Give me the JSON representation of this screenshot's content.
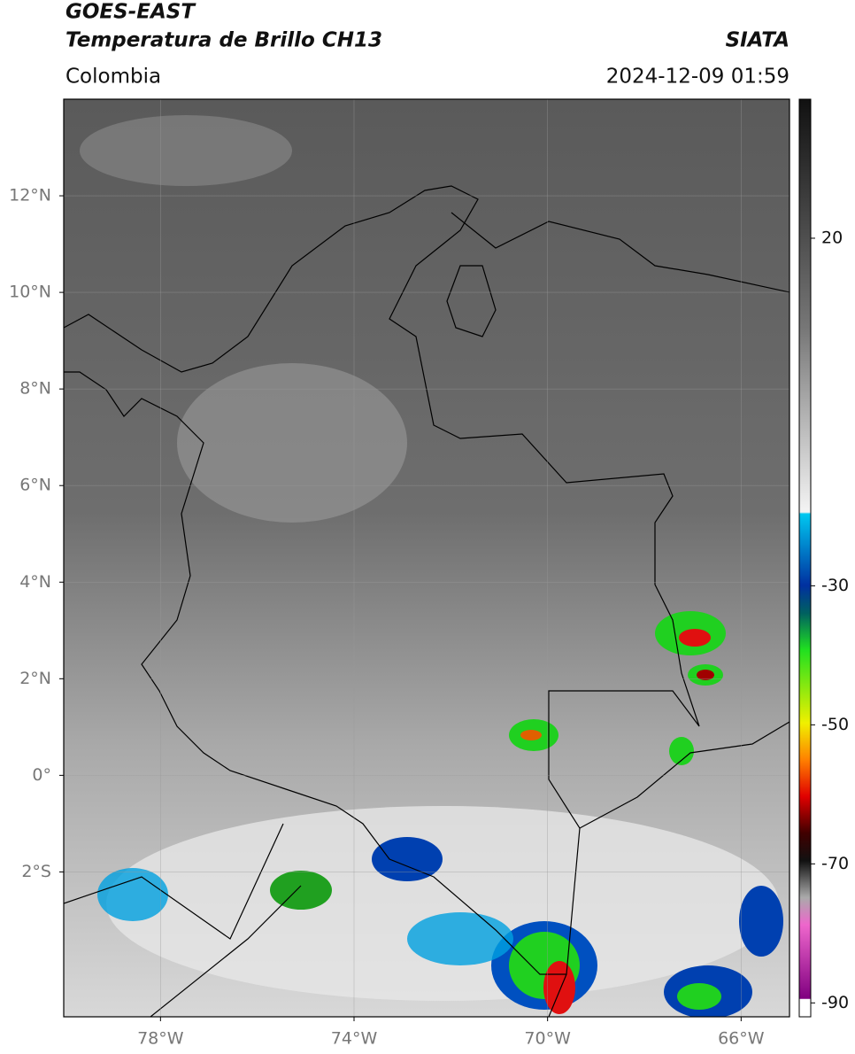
{
  "header": {
    "title": "GOES-EAST",
    "subtitle": "Temperatura de Brillo CH13",
    "region": "Colombia",
    "source": "SIATA",
    "timestamp": "2024-12-09 01:59"
  },
  "map": {
    "xlim": [
      -80,
      -65
    ],
    "ylim": [
      -5,
      14
    ],
    "xticks": [
      {
        "value": -78,
        "label": "78°W"
      },
      {
        "value": -74,
        "label": "74°W"
      },
      {
        "value": -70,
        "label": "70°W"
      },
      {
        "value": -66,
        "label": "66°W"
      }
    ],
    "yticks": [
      {
        "value": 12,
        "label": "12°N"
      },
      {
        "value": 10,
        "label": "10°N"
      },
      {
        "value": 8,
        "label": "8°N"
      },
      {
        "value": 6,
        "label": "6°N"
      },
      {
        "value": 4,
        "label": "4°N"
      },
      {
        "value": 2,
        "label": "2°N"
      },
      {
        "value": 0,
        "label": "0°"
      },
      {
        "value": -2,
        "label": "2°S"
      }
    ],
    "grid": true
  },
  "colorbar": {
    "lim": [
      -92,
      40
    ],
    "ticks": [
      20,
      -30,
      -50,
      -70,
      -90
    ]
  }
}
